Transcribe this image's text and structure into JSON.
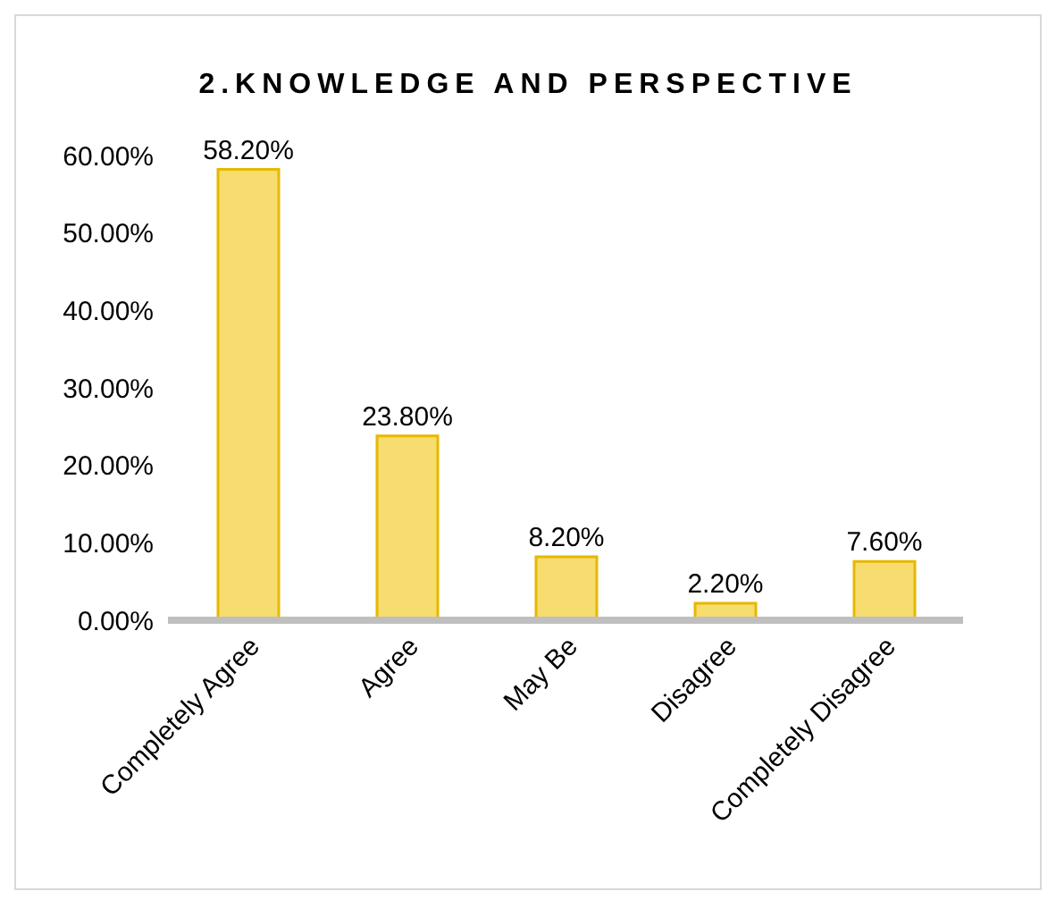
{
  "chart_data": {
    "type": "bar",
    "title": "2.KNOWLEDGE AND PERSPECTIVE",
    "categories": [
      "Completely Agree",
      "Agree",
      "May Be",
      "Disagree",
      "Completely Disagree"
    ],
    "values": [
      58.2,
      23.8,
      8.2,
      2.2,
      7.6
    ],
    "value_labels": [
      "58.20%",
      "23.80%",
      "8.20%",
      "2.20%",
      "7.60%"
    ],
    "color": "#f7dc6f",
    "ylim": [
      0,
      60
    ],
    "yticks": [
      {
        "value": 0,
        "label": "0.00%"
      },
      {
        "value": 10,
        "label": "10.00%"
      },
      {
        "value": 20,
        "label": "20.00%"
      },
      {
        "value": 30,
        "label": "30.00%"
      },
      {
        "value": 40,
        "label": "40.00%"
      },
      {
        "value": 50,
        "label": "50.00%"
      },
      {
        "value": 60,
        "label": "60.00%"
      }
    ],
    "grid": false,
    "legend": false
  }
}
